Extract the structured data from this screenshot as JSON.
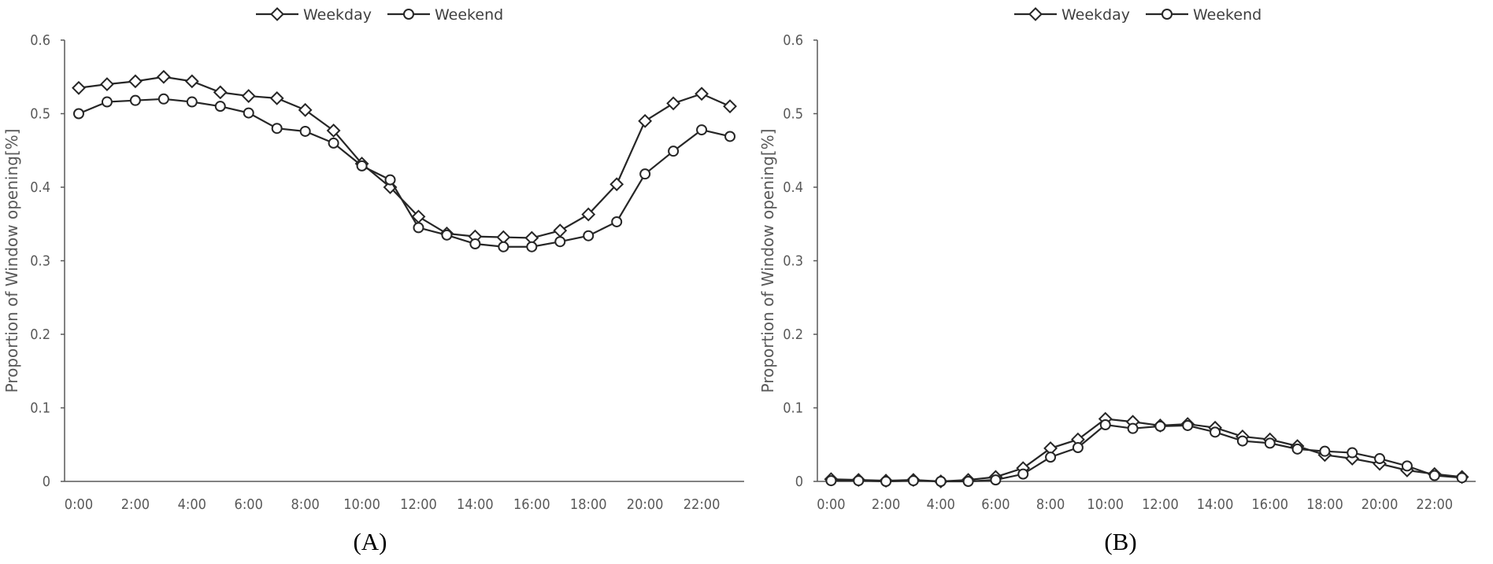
{
  "chart_data": [
    {
      "type": "line",
      "panel_label": "(A)",
      "ylabel": "Proportion of Window opening[%]",
      "xlabel": "",
      "ylim": [
        0,
        0.6
      ],
      "yticks": [
        "0",
        "0.1",
        "0.2",
        "0.3",
        "0.4",
        "0.5",
        "0.6"
      ],
      "x": [
        "0:00",
        "1:00",
        "2:00",
        "3:00",
        "4:00",
        "5:00",
        "6:00",
        "7:00",
        "8:00",
        "9:00",
        "10:00",
        "11:00",
        "12:00",
        "13:00",
        "14:00",
        "15:00",
        "16:00",
        "17:00",
        "18:00",
        "19:00",
        "20:00",
        "21:00",
        "22:00",
        "23:00"
      ],
      "xtick_labels": [
        "0:00",
        "2:00",
        "4:00",
        "6:00",
        "8:00",
        "10:00",
        "12:00",
        "14:00",
        "16:00",
        "18:00",
        "20:00",
        "22:00"
      ],
      "legend_position": "top",
      "grid": false,
      "series": [
        {
          "name": "Weekday",
          "marker": "diamond",
          "values": [
            0.535,
            0.54,
            0.544,
            0.55,
            0.544,
            0.529,
            0.524,
            0.521,
            0.505,
            0.477,
            0.432,
            0.4,
            0.36,
            0.337,
            0.333,
            0.332,
            0.331,
            0.341,
            0.363,
            0.404,
            0.49,
            0.514,
            0.527,
            0.51
          ]
        },
        {
          "name": "Weekend",
          "marker": "circle",
          "values": [
            0.5,
            0.516,
            0.518,
            0.52,
            0.516,
            0.51,
            0.501,
            0.48,
            0.476,
            0.46,
            0.429,
            0.41,
            0.345,
            0.335,
            0.323,
            0.319,
            0.319,
            0.326,
            0.334,
            0.353,
            0.418,
            0.449,
            0.478,
            0.469
          ]
        }
      ]
    },
    {
      "type": "line",
      "panel_label": "(B)",
      "ylabel": "Proportion of Window opening[%]",
      "xlabel": "",
      "ylim": [
        0,
        0.6
      ],
      "yticks": [
        "0",
        "0.1",
        "0.2",
        "0.3",
        "0.4",
        "0.5",
        "0.6"
      ],
      "x": [
        "0:00",
        "1:00",
        "2:00",
        "3:00",
        "4:00",
        "5:00",
        "6:00",
        "7:00",
        "8:00",
        "9:00",
        "10:00",
        "11:00",
        "12:00",
        "13:00",
        "14:00",
        "15:00",
        "16:00",
        "17:00",
        "18:00",
        "19:00",
        "20:00",
        "21:00",
        "22:00",
        "23:00"
      ],
      "xtick_labels": [
        "0:00",
        "2:00",
        "4:00",
        "6:00",
        "8:00",
        "10:00",
        "12:00",
        "14:00",
        "16:00",
        "18:00",
        "20:00",
        "22:00"
      ],
      "legend_position": "top",
      "grid": false,
      "series": [
        {
          "name": "Weekday",
          "marker": "diamond",
          "values": [
            0.003,
            0.002,
            0.001,
            0.002,
            0.0,
            0.002,
            0.006,
            0.018,
            0.045,
            0.057,
            0.085,
            0.081,
            0.076,
            0.078,
            0.073,
            0.061,
            0.057,
            0.048,
            0.036,
            0.031,
            0.024,
            0.015,
            0.01,
            0.006
          ]
        },
        {
          "name": "Weekend",
          "marker": "circle",
          "values": [
            0.001,
            0.001,
            0.0,
            0.001,
            0.0,
            0.0,
            0.002,
            0.01,
            0.033,
            0.046,
            0.077,
            0.072,
            0.075,
            0.076,
            0.067,
            0.055,
            0.052,
            0.044,
            0.041,
            0.039,
            0.031,
            0.021,
            0.008,
            0.005
          ]
        }
      ]
    }
  ]
}
